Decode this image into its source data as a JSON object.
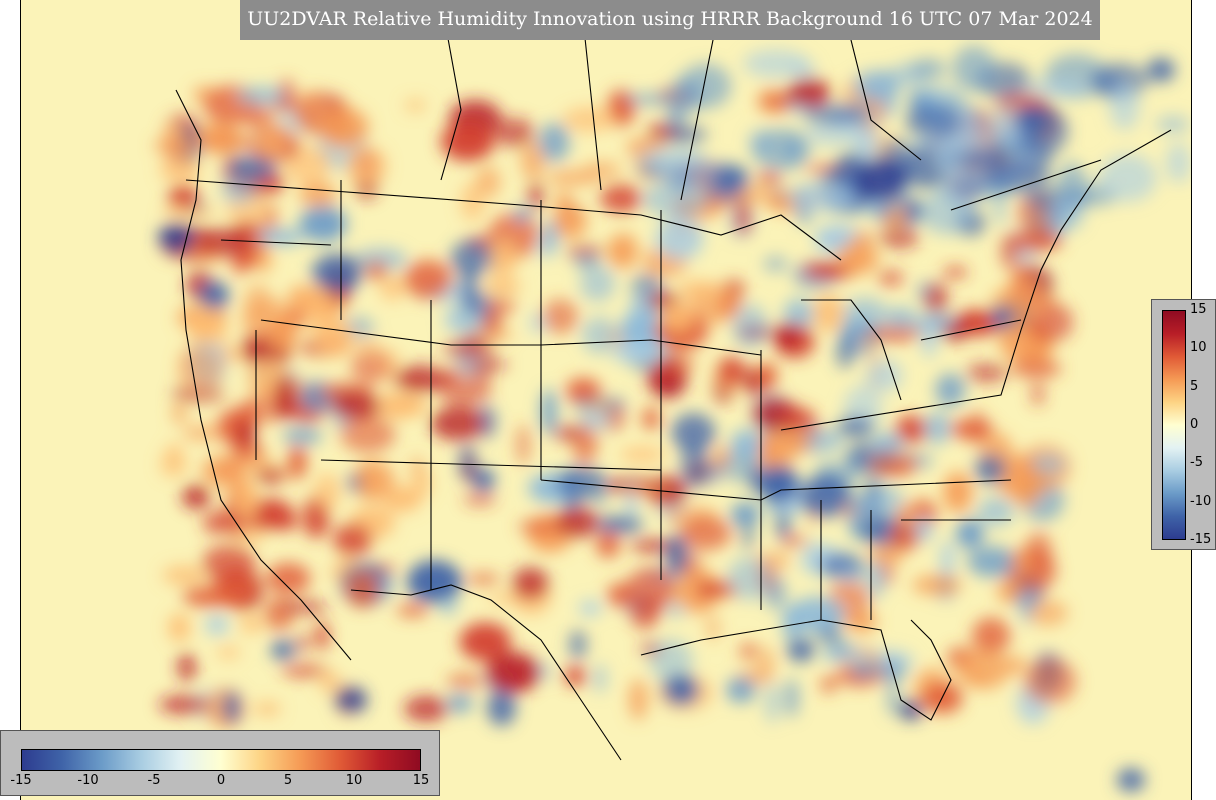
{
  "title": "UU2DVAR Relative Humidity Innovation using HRRR Background 16 UTC 07 Mar 2024",
  "colorbar": {
    "min": -15,
    "max": 15,
    "ticks_horizontal": [
      "-15",
      "-10",
      "-5",
      "0",
      "5",
      "10",
      "15"
    ],
    "ticks_vertical": [
      "15",
      "10",
      "5",
      "0",
      "-5",
      "-10",
      "-15"
    ],
    "colormap": [
      "#2d3c8f",
      "#3f63a8",
      "#6b9bc8",
      "#a9cde2",
      "#e3f2f3",
      "#ffffd1",
      "#fdd384",
      "#f59a55",
      "#e05a36",
      "#b81e27",
      "#8f0b22"
    ]
  },
  "map": {
    "background_color": "#fbf3b8",
    "boundary_color": "#000000"
  }
}
